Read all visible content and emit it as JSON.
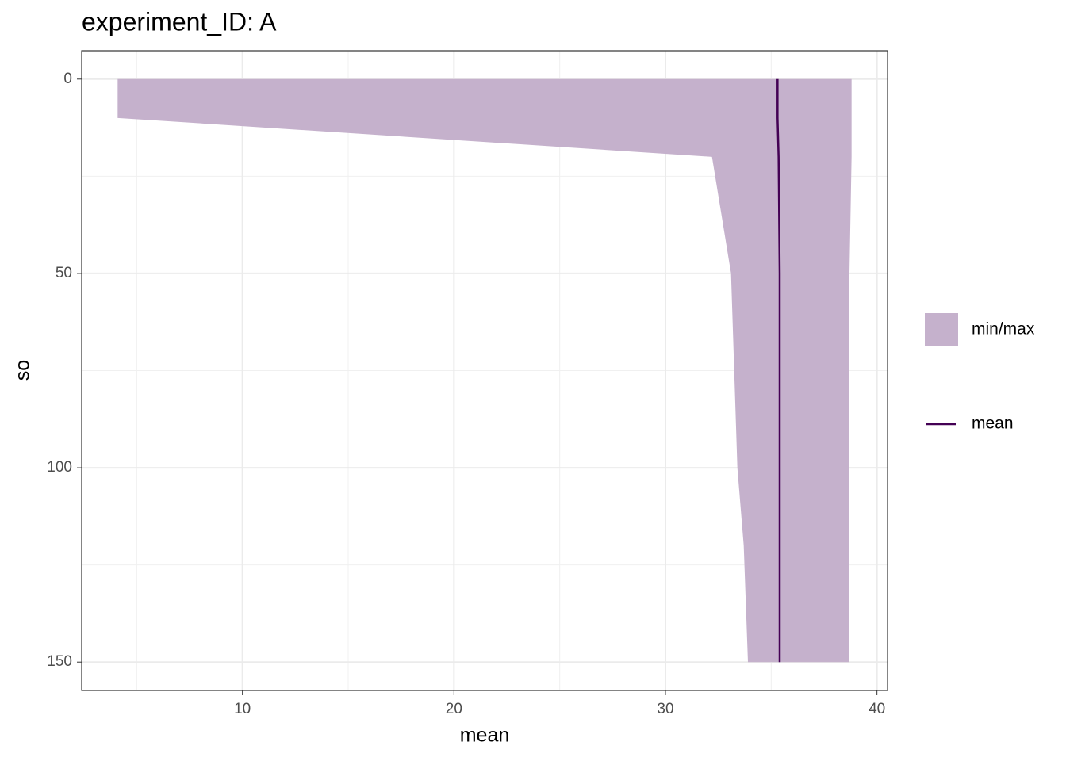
{
  "chart_data": {
    "type": "ribbon",
    "title": "experiment_ID: A",
    "x_label": "mean",
    "y_label": "so",
    "y": [
      0,
      10,
      20,
      50,
      100,
      120,
      150
    ],
    "series": [
      {
        "name": "min/max",
        "color": "#c5b1cc",
        "xmin": [
          4.1,
          4.1,
          32.2,
          33.1,
          33.4,
          33.7,
          33.9
        ],
        "xmax": [
          38.8,
          38.8,
          38.8,
          38.7,
          38.7,
          38.7,
          38.7
        ]
      },
      {
        "name": "mean",
        "color": "#440154",
        "values": [
          35.3,
          35.3,
          35.35,
          35.4,
          35.4,
          35.4,
          35.4
        ]
      }
    ],
    "xlim": [
      2.4,
      40.5
    ],
    "ylim": [
      -7.3,
      157.3
    ],
    "y_reversed": true,
    "xticks": [
      10,
      20,
      30,
      40
    ],
    "yticks": [
      0,
      50,
      100,
      150
    ],
    "x_minor_ticks": [
      5,
      15,
      25,
      35
    ],
    "y_minor_ticks": [
      25,
      75,
      125
    ],
    "grid": true
  }
}
